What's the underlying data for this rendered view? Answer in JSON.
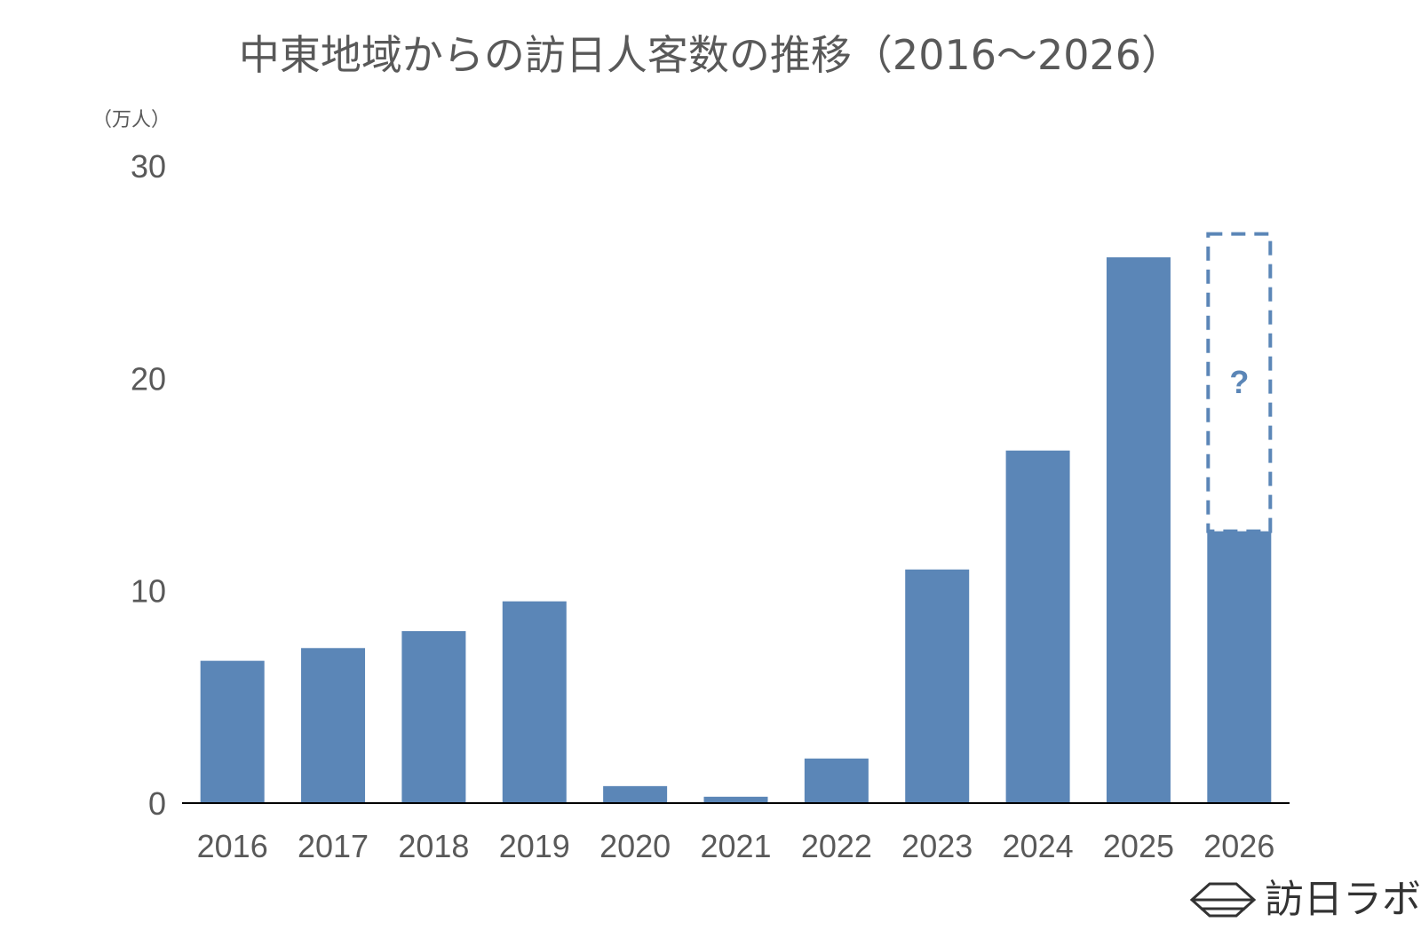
{
  "colors": {
    "bar": "#5b86b7",
    "text": "#595959",
    "axis": "#000000",
    "logo": "#333333"
  },
  "chart_data": {
    "type": "bar",
    "title": "中東地域からの訪日人客数の推移（2016～2026）",
    "unit_label": "（万人）",
    "xlabel": "",
    "ylabel": "",
    "ylim": [
      0,
      30
    ],
    "yticks": [
      0,
      10,
      20,
      30
    ],
    "grid": false,
    "categories": [
      "2016",
      "2017",
      "2018",
      "2019",
      "2020",
      "2021",
      "2022",
      "2023",
      "2024",
      "2025",
      "2026"
    ],
    "values": [
      6.7,
      7.3,
      8.1,
      9.5,
      0.8,
      0.3,
      2.1,
      11.0,
      16.6,
      25.7,
      12.8
    ],
    "projection": {
      "category": "2026",
      "value": 26.8,
      "label": "?",
      "style": "dashed-outline"
    }
  },
  "logo": {
    "text": "訪日ラボ",
    "icon": "hexagon-logo-icon"
  }
}
